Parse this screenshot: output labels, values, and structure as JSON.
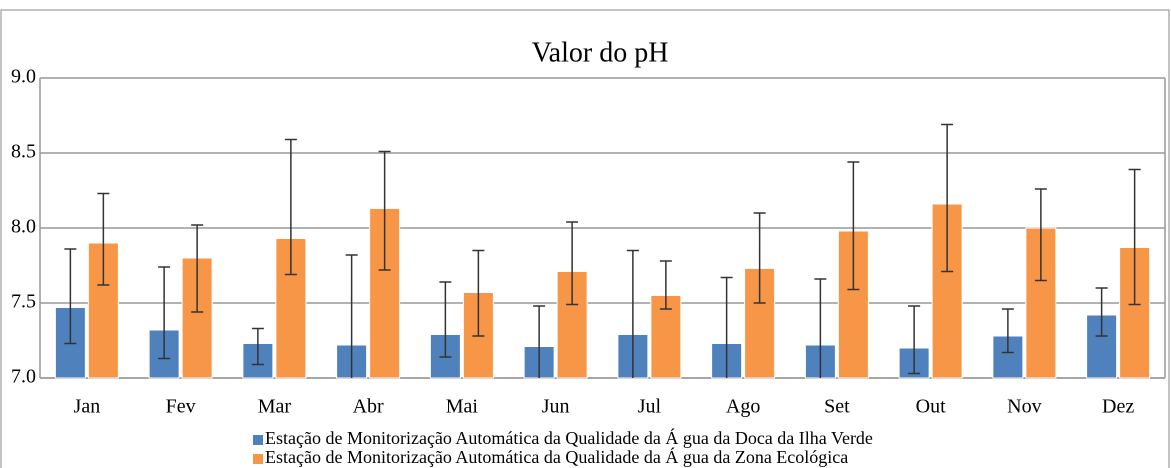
{
  "chart_data": {
    "type": "bar",
    "title": "Valor do pH",
    "categories": [
      "Jan",
      "Fev",
      "Mar",
      "Abr",
      "Mai",
      "Jun",
      "Jul",
      "Ago",
      "Set",
      "Out",
      "Nov",
      "Dez"
    ],
    "series": [
      {
        "name": "Estação de Monitorização Automática da Qualidade da Á gua da Doca da Ilha Verde",
        "color": "#4f81bd",
        "values": [
          7.47,
          7.32,
          7.23,
          7.22,
          7.29,
          7.21,
          7.29,
          7.23,
          7.22,
          7.2,
          7.28,
          7.42
        ],
        "min": [
          7.23,
          7.13,
          7.09,
          7.0,
          7.14,
          7.0,
          7.0,
          7.0,
          7.0,
          7.03,
          7.17,
          7.28
        ],
        "max": [
          7.86,
          7.74,
          7.33,
          7.82,
          7.64,
          7.48,
          7.85,
          7.67,
          7.66,
          7.48,
          7.46,
          7.6
        ]
      },
      {
        "name": "Estação de Monitorização Automática da Qualidade da Á gua da Zona Ecológica",
        "color": "#f79646",
        "values": [
          7.9,
          7.8,
          7.93,
          8.13,
          7.57,
          7.71,
          7.55,
          7.73,
          7.98,
          8.16,
          8.0,
          7.87
        ],
        "min": [
          7.62,
          7.44,
          7.69,
          7.72,
          7.28,
          7.49,
          7.46,
          7.5,
          7.59,
          7.71,
          7.65,
          7.49
        ],
        "max": [
          8.23,
          8.02,
          8.59,
          8.51,
          7.85,
          8.04,
          7.78,
          8.1,
          8.44,
          8.69,
          8.26,
          8.39
        ]
      }
    ],
    "ylim": [
      7.0,
      9.0
    ],
    "yticks": [
      {
        "value": 7.0,
        "label": "7.0"
      },
      7.5,
      {
        "value": 8.0,
        "label": "8.0"
      },
      8.5,
      {
        "value": 9.0,
        "label": "9.0"
      }
    ],
    "grid": true
  }
}
